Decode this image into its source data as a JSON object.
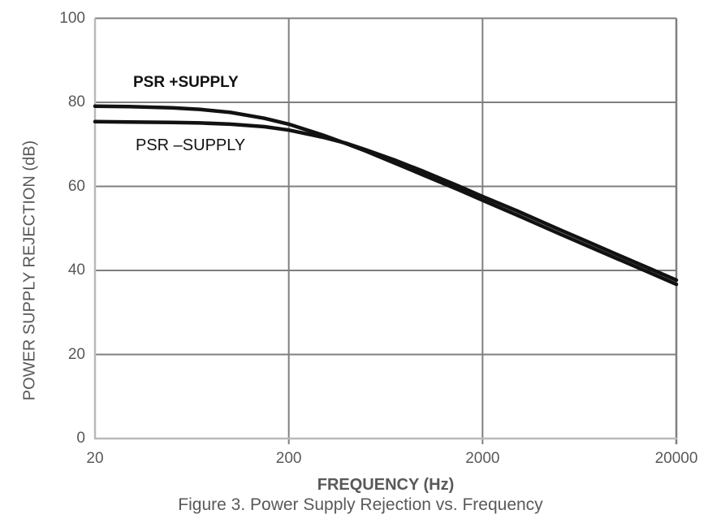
{
  "figure": {
    "caption": "Figure 3. Power Supply Rejection vs. Frequency"
  },
  "chart_data": {
    "type": "line",
    "title": "",
    "xlabel": "FREQUENCY (Hz)",
    "ylabel": "POWER SUPPLY REJECTION (dB)",
    "x_scale": "log",
    "xlim": [
      20,
      20000
    ],
    "ylim": [
      0,
      100
    ],
    "x_ticks": [
      20,
      200,
      2000,
      20000
    ],
    "y_ticks": [
      0,
      20,
      40,
      60,
      80,
      100
    ],
    "grid": true,
    "legend_position": "in-plot-annotations",
    "colors": {
      "curve": "#121212",
      "gridline": "#7f7f7f",
      "axis": "#b9b9b9",
      "text": "#595959"
    },
    "series": [
      {
        "name": "PSR +SUPPLY",
        "points": [
          [
            20,
            79.1
          ],
          [
            30,
            79.0
          ],
          [
            50,
            78.7
          ],
          [
            70,
            78.3
          ],
          [
            100,
            77.6
          ],
          [
            150,
            76.2
          ],
          [
            200,
            74.8
          ],
          [
            300,
            72.2
          ],
          [
            400,
            70.1
          ],
          [
            500,
            68.4
          ],
          [
            700,
            65.6
          ],
          [
            1000,
            62.6
          ],
          [
            1500,
            59.2
          ],
          [
            2000,
            56.7
          ],
          [
            3000,
            53.2
          ],
          [
            5000,
            48.7
          ],
          [
            7000,
            45.8
          ],
          [
            10000,
            42.7
          ],
          [
            15000,
            39.2
          ],
          [
            20000,
            36.7
          ]
        ]
      },
      {
        "name": "PSR –SUPPLY",
        "points": [
          [
            20,
            75.4
          ],
          [
            30,
            75.3
          ],
          [
            50,
            75.2
          ],
          [
            70,
            75.1
          ],
          [
            100,
            74.8
          ],
          [
            150,
            74.2
          ],
          [
            200,
            73.4
          ],
          [
            300,
            71.7
          ],
          [
            400,
            70.2
          ],
          [
            500,
            68.7
          ],
          [
            700,
            66.3
          ],
          [
            1000,
            63.5
          ],
          [
            1500,
            60.1
          ],
          [
            2000,
            57.6
          ],
          [
            3000,
            54.2
          ],
          [
            5000,
            49.7
          ],
          [
            7000,
            46.8
          ],
          [
            10000,
            43.7
          ],
          [
            15000,
            40.2
          ],
          [
            20000,
            37.7
          ]
        ]
      }
    ],
    "annotations": [
      {
        "text": "PSR +SUPPLY",
        "bold": true
      },
      {
        "text": "PSR –SUPPLY",
        "bold": false
      }
    ]
  }
}
